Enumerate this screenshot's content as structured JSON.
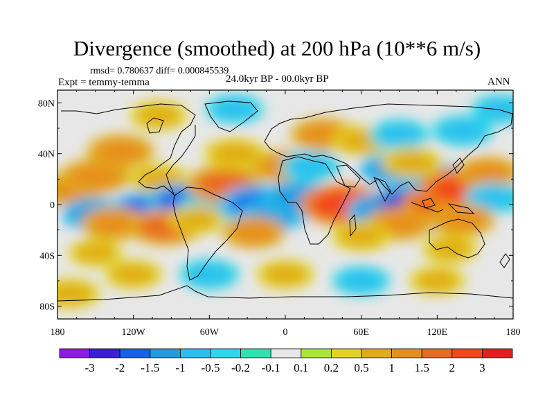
{
  "title": "Divergence (smoothed) at 200 hPa (10**6 m/s)",
  "stats": "rmsd= 0.780637 diff= 0.000845539",
  "experiment": "Expt = temmy-temma",
  "period": "24.0kyr BP - 00.0kyr BP",
  "season": "ANN",
  "map": {
    "lon_range": [
      -180,
      180
    ],
    "lat_range": [
      -90,
      90
    ],
    "lon_ticks": [
      {
        "lon": -180,
        "label": "180"
      },
      {
        "lon": -120,
        "label": "120W"
      },
      {
        "lon": -60,
        "label": "60W"
      },
      {
        "lon": 0,
        "label": "0"
      },
      {
        "lon": 60,
        "label": "60E"
      },
      {
        "lon": 120,
        "label": "120E"
      },
      {
        "lon": 180,
        "label": "180"
      }
    ],
    "lat_ticks": [
      {
        "lat": 80,
        "label": "80N"
      },
      {
        "lat": 40,
        "label": "40N"
      },
      {
        "lat": 0,
        "label": "0"
      },
      {
        "lat": -40,
        "label": "40S"
      },
      {
        "lat": -80,
        "label": "80S"
      }
    ],
    "anomalies": [
      {
        "lon": -170,
        "lat": 12,
        "value": 1.2
      },
      {
        "lon": -150,
        "lat": 22,
        "value": 1.4
      },
      {
        "lon": -130,
        "lat": 42,
        "value": 1.2
      },
      {
        "lon": -100,
        "lat": 20,
        "value": 0.8
      },
      {
        "lon": -150,
        "lat": -8,
        "value": -1.2
      },
      {
        "lon": -110,
        "lat": -5,
        "value": -1.8
      },
      {
        "lon": -80,
        "lat": 2,
        "value": -1.6
      },
      {
        "lon": -60,
        "lat": -3,
        "value": -1.0
      },
      {
        "lon": -135,
        "lat": -15,
        "value": 1.2
      },
      {
        "lon": -95,
        "lat": -18,
        "value": 1.5
      },
      {
        "lon": -70,
        "lat": -12,
        "value": 0.6
      },
      {
        "lon": -48,
        "lat": 16,
        "value": 1.7
      },
      {
        "lon": -40,
        "lat": 40,
        "value": 0.9
      },
      {
        "lon": -20,
        "lat": 0,
        "value": -1.9
      },
      {
        "lon": -10,
        "lat": -8,
        "value": -1.2
      },
      {
        "lon": -25,
        "lat": -22,
        "value": 1.0
      },
      {
        "lon": 0,
        "lat": 30,
        "value": 1.1
      },
      {
        "lon": 20,
        "lat": 30,
        "value": -0.8
      },
      {
        "lon": 30,
        "lat": 55,
        "value": 1.1
      },
      {
        "lon": 60,
        "lat": 50,
        "value": 0.8
      },
      {
        "lon": 90,
        "lat": 55,
        "value": -0.8
      },
      {
        "lon": 140,
        "lat": 58,
        "value": -0.9
      },
      {
        "lon": 10,
        "lat": 5,
        "value": -1.4
      },
      {
        "lon": 45,
        "lat": 0,
        "value": 2.2
      },
      {
        "lon": 75,
        "lat": -5,
        "value": -1.2
      },
      {
        "lon": 103,
        "lat": -3,
        "value": -2.8
      },
      {
        "lon": 125,
        "lat": 2,
        "value": 2.0
      },
      {
        "lon": 120,
        "lat": 20,
        "value": -1.1
      },
      {
        "lon": 140,
        "lat": 12,
        "value": 2.3
      },
      {
        "lon": 160,
        "lat": 25,
        "value": 1.0
      },
      {
        "lon": 165,
        "lat": 5,
        "value": -0.8
      },
      {
        "lon": 85,
        "lat": 28,
        "value": -1.2
      },
      {
        "lon": 100,
        "lat": 33,
        "value": 0.9
      },
      {
        "lon": 90,
        "lat": -15,
        "value": 1.2
      },
      {
        "lon": 140,
        "lat": -12,
        "value": 1.1
      },
      {
        "lon": 60,
        "lat": -25,
        "value": 0.8
      },
      {
        "lon": 130,
        "lat": -35,
        "value": 0.6
      },
      {
        "lon": -150,
        "lat": -38,
        "value": 0.5
      },
      {
        "lon": -120,
        "lat": -55,
        "value": 0.7
      },
      {
        "lon": -60,
        "lat": -55,
        "value": -0.8
      },
      {
        "lon": 0,
        "lat": -55,
        "value": 0.7
      },
      {
        "lon": 60,
        "lat": -60,
        "value": -0.7
      },
      {
        "lon": 120,
        "lat": -60,
        "value": 0.6
      },
      {
        "lon": -170,
        "lat": -70,
        "value": 0.8
      },
      {
        "lon": -100,
        "lat": 70,
        "value": 0.7
      },
      {
        "lon": -40,
        "lat": 75,
        "value": -0.7
      },
      {
        "lon": 170,
        "lat": 75,
        "value": -0.7
      }
    ]
  },
  "colorbar": {
    "colors": [
      "#8e1ae6",
      "#3a1fd6",
      "#1462e8",
      "#1f9be0",
      "#29c0ee",
      "#2fd8e8",
      "#2ee3b0",
      "#e7e7e7",
      "#a9e635",
      "#e4d324",
      "#e0ad17",
      "#e78f1c",
      "#ea6a20",
      "#f3471a",
      "#e41e1e"
    ],
    "labels": [
      "-3",
      "-2",
      "-1.5",
      "-1",
      "-0.5",
      "-0.2",
      "-0.1",
      "0.1",
      "0.2",
      "0.5",
      "1",
      "1.5",
      "2",
      "3"
    ]
  }
}
